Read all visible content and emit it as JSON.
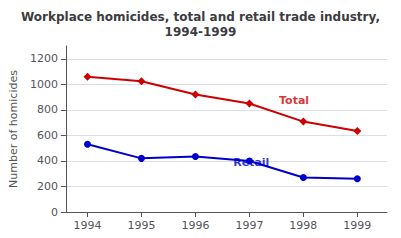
{
  "chart_data": {
    "type": "line",
    "title": "Workplace homicides, total and retail trade industry,\n1994-1999",
    "ylabel": "Number of homicides",
    "x": [
      1994,
      1995,
      1996,
      1997,
      1998,
      1999
    ],
    "series": [
      {
        "color": "#cc0000",
        "marker": "diamond",
        "values": [
          1060,
          1024,
          920,
          850,
          708,
          635
        ]
      },
      {
        "color": "#0000cc",
        "marker": "circle",
        "values": [
          530,
          420,
          435,
          400,
          270,
          260
        ]
      }
    ],
    "annotations": [
      {
        "text": "Total",
        "x": 1997.55,
        "y": 870,
        "color": "#cc0000"
      },
      {
        "text": "Retail",
        "x": 1996.7,
        "y": 390,
        "color": "#0000cc"
      }
    ],
    "xlim": [
      1993.6,
      1999.55
    ],
    "xticks": [
      1994,
      1995,
      1996,
      1997,
      1998,
      1999
    ],
    "ylim": [
      0,
      1300
    ],
    "yticks": [
      0,
      200,
      400,
      600,
      800,
      1000,
      1200
    ],
    "grid": true
  }
}
